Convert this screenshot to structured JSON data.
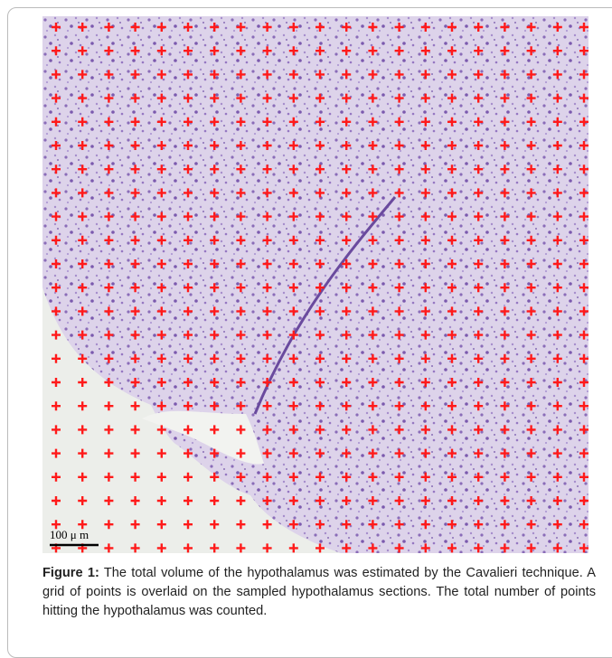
{
  "figure": {
    "scale_bar": "100 μ m",
    "caption_label": "Figure 1:",
    "caption_text": "The total volume of the hypothalamus was estimated by the Cavalieri technique. A grid of points is overlaid on the sampled hypothalamus sections. The total number of points hitting the hypothalamus was counted."
  }
}
